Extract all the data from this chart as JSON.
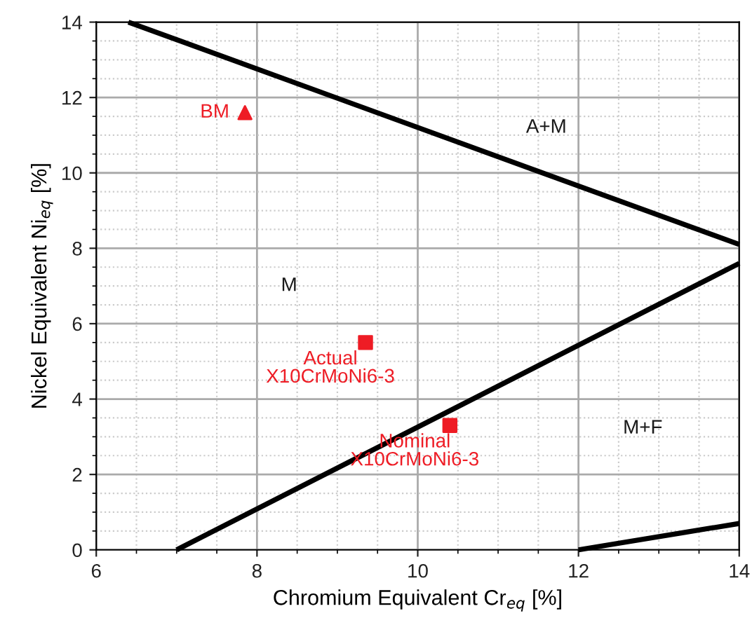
{
  "chart_data": {
    "type": "line",
    "xlabel": "Chromium Equivalent Cr$_{eq}$ [%]",
    "ylabel": "Nickel Equivalent Ni$_{eq}$ [%]",
    "xlim": [
      6,
      14
    ],
    "ylim": [
      0,
      14
    ],
    "xticks": [
      6,
      8,
      10,
      12,
      14
    ],
    "yticks": [
      0,
      2,
      4,
      6,
      8,
      10,
      12,
      14
    ],
    "grid": true,
    "legend": false,
    "series": [
      {
        "color": "#000000",
        "marker": "none",
        "x": [
          6.4,
          14
        ],
        "values": [
          14,
          8.1
        ]
      },
      {
        "color": "#000000",
        "marker": "none",
        "x": [
          7,
          14
        ],
        "values": [
          0,
          7.6
        ]
      },
      {
        "color": "#000000",
        "marker": "none",
        "x": [
          12,
          14
        ],
        "values": [
          0,
          0.7
        ]
      },
      {
        "type": "scatter",
        "color": "#ee1c25",
        "marker": "triangle",
        "x": [
          7.85
        ],
        "values": [
          11.6
        ]
      },
      {
        "type": "scatter",
        "color": "#ee1c25",
        "marker": "square",
        "x": [
          9.35,
          10.4
        ],
        "values": [
          5.5,
          3.3
        ]
      }
    ],
    "annotations": [
      {
        "text": "BM",
        "x": 7.85,
        "y": 11.6
      },
      {
        "text": "Actual\nX10CrMoNi6-3",
        "x": 9.35,
        "y": 5.5
      },
      {
        "text": "Nominal\nX10CrMoNi6-3",
        "x": 10.4,
        "y": 3.3
      },
      "M",
      "A+M",
      "M+F"
    ]
  }
}
